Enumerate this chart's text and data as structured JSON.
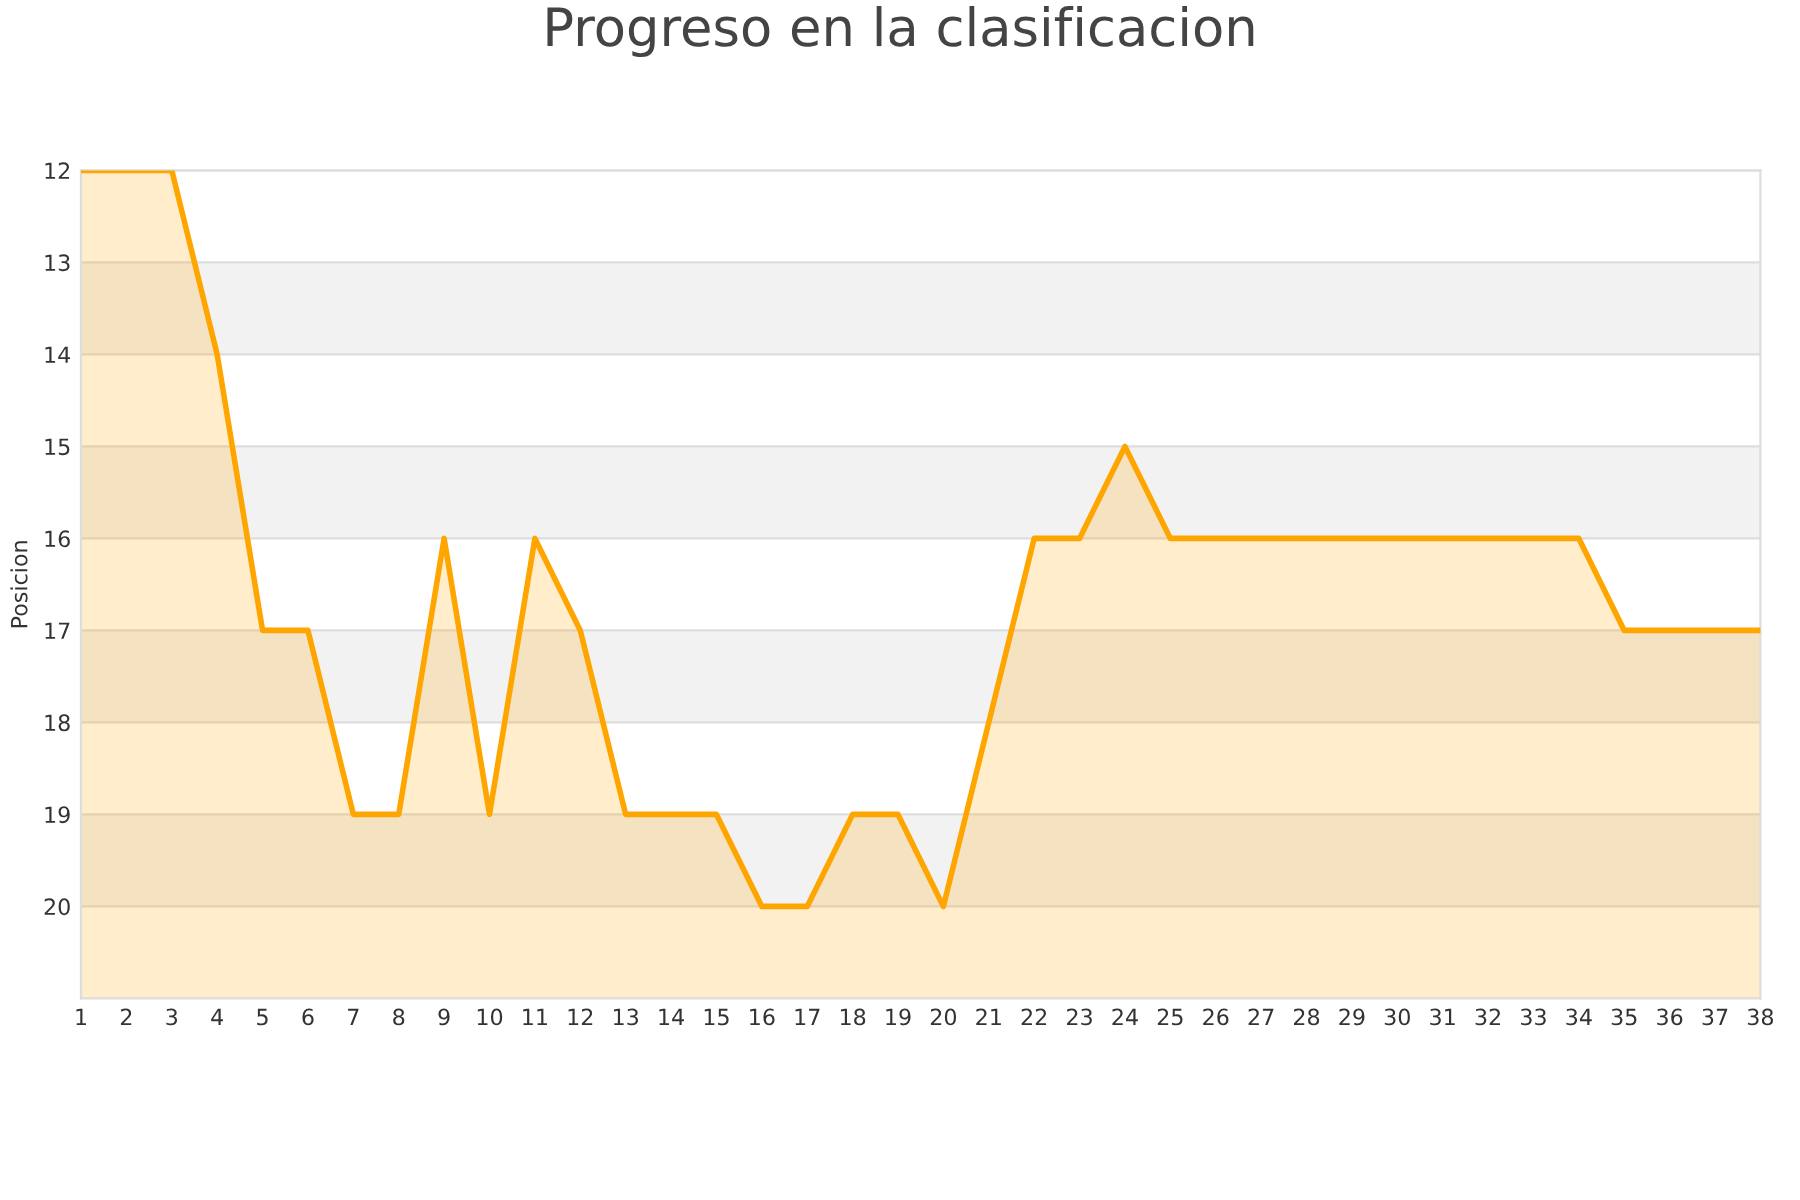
{
  "chart_data": {
    "type": "area",
    "title": "Progreso en la clasificacion",
    "ylabel": "Posicion",
    "x": [
      1,
      2,
      3,
      4,
      5,
      6,
      7,
      8,
      9,
      10,
      11,
      12,
      13,
      14,
      15,
      16,
      17,
      18,
      19,
      20,
      21,
      22,
      23,
      24,
      25,
      26,
      27,
      28,
      29,
      30,
      31,
      32,
      33,
      34,
      35,
      36,
      37,
      38
    ],
    "series": [
      {
        "color": "#ffa500",
        "values": [
          12,
          12,
          12,
          14,
          17,
          17,
          19,
          19,
          16,
          19,
          16,
          17,
          19,
          19,
          19,
          20,
          20,
          19,
          19,
          20,
          18,
          16,
          16,
          15,
          16,
          16,
          16,
          16,
          16,
          16,
          16,
          16,
          16,
          16,
          17,
          17,
          17,
          17
        ]
      }
    ],
    "xlim": [
      1,
      38
    ],
    "xticks": [
      1,
      2,
      3,
      4,
      5,
      6,
      7,
      8,
      9,
      10,
      11,
      12,
      13,
      14,
      15,
      16,
      17,
      18,
      19,
      20,
      21,
      22,
      23,
      24,
      25,
      26,
      27,
      28,
      29,
      30,
      31,
      32,
      33,
      34,
      35,
      36,
      37,
      38
    ],
    "ylim": [
      21,
      12
    ],
    "yticks": [
      12,
      13,
      14,
      15,
      16,
      17,
      18,
      19,
      20
    ],
    "bands": [
      {
        "axis": "y",
        "from": 13,
        "to": 14,
        "color": "#f2f2f2"
      },
      {
        "axis": "y",
        "from": 15,
        "to": 16,
        "color": "#f2f2f2"
      },
      {
        "axis": "y",
        "from": 17,
        "to": 18,
        "color": "#f2f2f2"
      },
      {
        "axis": "y",
        "from": 19,
        "to": 20,
        "color": "#f2f2f2"
      }
    ],
    "grid": "y",
    "line_style": "solid"
  }
}
